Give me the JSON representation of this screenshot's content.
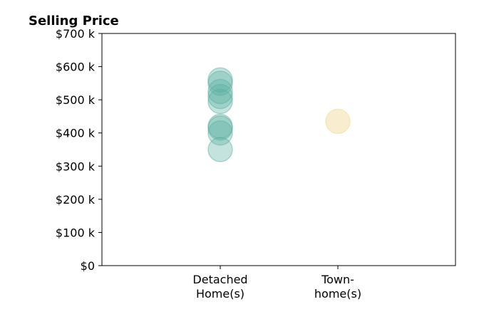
{
  "chart_data": {
    "type": "scatter",
    "title": "Selling Price",
    "xlabel": "",
    "ylabel": "",
    "categories": [
      [
        "Detached",
        "Home(s)"
      ],
      [
        "Town-",
        "home(s)"
      ]
    ],
    "ylim": [
      0,
      700000
    ],
    "yticks": [
      0,
      100000,
      200000,
      300000,
      400000,
      500000,
      600000,
      700000
    ],
    "ytick_labels": [
      "$0",
      "$100 k",
      "$200 k",
      "$300 k",
      "$400 k",
      "$500 k",
      "$600 k",
      "$700 k"
    ],
    "grid": false,
    "series": [
      {
        "category_index": 0,
        "color": "#5aafa0",
        "opacity": 0.35,
        "values": [
          560000,
          550000,
          525000,
          510000,
          495000,
          420000,
          415000,
          400000,
          350000
        ]
      },
      {
        "category_index": 1,
        "color": "#f2dfa7",
        "opacity": 0.55,
        "values": [
          435000
        ]
      }
    ]
  }
}
